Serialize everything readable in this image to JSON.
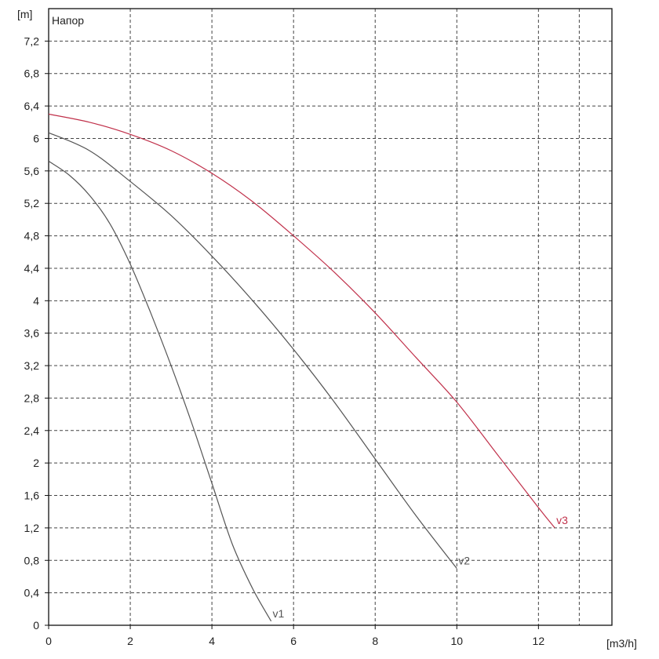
{
  "chart_data": {
    "type": "line",
    "title": "Напор",
    "xlabel": "[m3/h]",
    "ylabel": "[m]",
    "xlim": [
      0,
      13.8
    ],
    "ylim": [
      0,
      7.6
    ],
    "grid": true,
    "x_ticks": [
      0,
      2,
      4,
      6,
      8,
      10,
      12
    ],
    "y_ticks": [
      0,
      0.4,
      0.8,
      1.2,
      1.6,
      2,
      2.4,
      2.8,
      3.2,
      3.6,
      4,
      4.4,
      4.8,
      5.2,
      5.6,
      6,
      6.4,
      6.8,
      7.2
    ],
    "x_tick_labels": [
      "0",
      "2",
      "4",
      "6",
      "8",
      "10",
      "12"
    ],
    "y_tick_labels": [
      "0",
      "0,4",
      "0,8",
      "1,2",
      "1,6",
      "2",
      "2,4",
      "2,8",
      "3,2",
      "3,6",
      "4",
      "4,4",
      "4,8",
      "5,2",
      "5,6",
      "6",
      "6,4",
      "6,8",
      "7,2"
    ],
    "series": [
      {
        "name": "v1",
        "color": "#555555",
        "points": [
          [
            0,
            5.72
          ],
          [
            0.5,
            5.55
          ],
          [
            1,
            5.3
          ],
          [
            1.5,
            4.95
          ],
          [
            2,
            4.45
          ],
          [
            2.5,
            3.85
          ],
          [
            3,
            3.2
          ],
          [
            3.5,
            2.5
          ],
          [
            4,
            1.75
          ],
          [
            4.5,
            1.0
          ],
          [
            5,
            0.45
          ],
          [
            5.45,
            0.05
          ]
        ]
      },
      {
        "name": "v2",
        "color": "#555555",
        "points": [
          [
            0,
            6.07
          ],
          [
            1,
            5.85
          ],
          [
            2,
            5.47
          ],
          [
            3,
            5.05
          ],
          [
            4,
            4.55
          ],
          [
            5,
            4.0
          ],
          [
            6,
            3.4
          ],
          [
            7,
            2.75
          ],
          [
            8,
            2.05
          ],
          [
            9,
            1.35
          ],
          [
            10,
            0.7
          ]
        ]
      },
      {
        "name": "v3",
        "color": "#c0304a",
        "points": [
          [
            0,
            6.3
          ],
          [
            1,
            6.2
          ],
          [
            2,
            6.05
          ],
          [
            3,
            5.85
          ],
          [
            4,
            5.57
          ],
          [
            5,
            5.22
          ],
          [
            6,
            4.8
          ],
          [
            7,
            4.35
          ],
          [
            8,
            3.85
          ],
          [
            9,
            3.3
          ],
          [
            10,
            2.75
          ],
          [
            11,
            2.1
          ],
          [
            12,
            1.45
          ],
          [
            12.4,
            1.2
          ]
        ]
      }
    ]
  }
}
